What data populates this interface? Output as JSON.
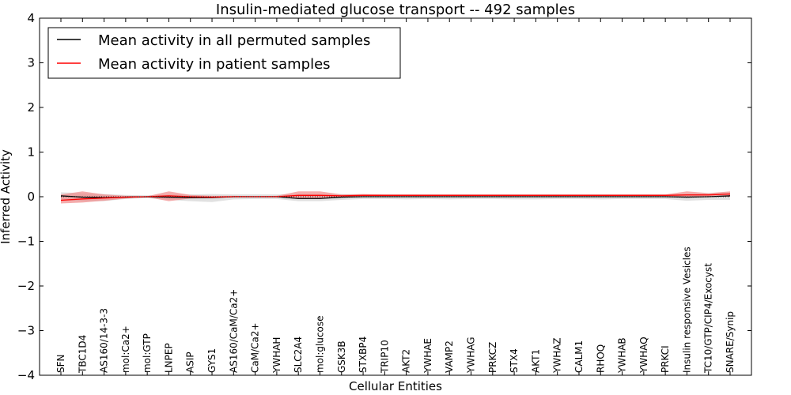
{
  "chart_data": {
    "type": "line",
    "title": "Insulin-mediated glucose transport -- 492 samples",
    "xlabel": "Cellular Entities",
    "ylabel": "Inferred Activity",
    "ylim": [
      -4,
      4
    ],
    "yticks": [
      -4,
      -3,
      -2,
      -1,
      0,
      1,
      2,
      3,
      4
    ],
    "ytick_labels": [
      "−4",
      "−3",
      "−2",
      "−1",
      "0",
      "1",
      "2",
      "3",
      "4"
    ],
    "legend_position": "top-left",
    "categories": [
      "SFN",
      "TBC1D4",
      "AS160/14-3-3",
      "mol:Ca2+",
      "mol:GTP",
      "LNPEP",
      "ASIP",
      "GYS1",
      "AS160/CaM/Ca2+",
      "CaM/Ca2+",
      "YWHAH",
      "SLC2A4",
      "mol:glucose",
      "GSK3B",
      "STXBP4",
      "TRIP10",
      "AKT2",
      "YWHAE",
      "VAMP2",
      "YWHAG",
      "PRKCZ",
      "STX4",
      "AKT1",
      "YWHAZ",
      "CALM1",
      "RHOQ",
      "YWHAB",
      "YWHAQ",
      "PRKCI",
      "Insulin responsive Vesicles",
      "TC10/GTP/CIP4/Exocyst",
      "SNARE/Synip"
    ],
    "series": [
      {
        "name": "Mean activity in all permuted samples",
        "color": "#000000",
        "values": [
          0.02,
          -0.01,
          -0.02,
          -0.01,
          0.0,
          -0.01,
          -0.02,
          -0.02,
          0.0,
          0.0,
          0.0,
          -0.04,
          -0.04,
          -0.01,
          0.0,
          0.0,
          0.0,
          0.0,
          0.0,
          0.0,
          0.0,
          0.0,
          0.0,
          0.0,
          0.0,
          0.0,
          0.0,
          0.0,
          0.0,
          -0.01,
          0.0,
          0.02
        ],
        "band_low": [
          -0.08,
          -0.1,
          -0.1,
          -0.05,
          -0.03,
          -0.07,
          -0.1,
          -0.12,
          -0.06,
          -0.05,
          -0.05,
          -0.1,
          -0.1,
          -0.07,
          -0.05,
          -0.05,
          -0.06,
          -0.05,
          -0.06,
          -0.05,
          -0.05,
          -0.06,
          -0.06,
          -0.05,
          -0.05,
          -0.06,
          -0.05,
          -0.05,
          -0.05,
          -0.09,
          -0.07,
          -0.07
        ],
        "band_high": [
          0.1,
          0.08,
          0.06,
          0.04,
          0.03,
          0.05,
          0.05,
          0.06,
          0.05,
          0.05,
          0.05,
          0.06,
          0.06,
          0.06,
          0.05,
          0.05,
          0.05,
          0.05,
          0.05,
          0.05,
          0.05,
          0.05,
          0.05,
          0.05,
          0.05,
          0.05,
          0.05,
          0.05,
          0.05,
          0.06,
          0.08,
          0.1
        ],
        "band_color": "#c8c8c8"
      },
      {
        "name": "Mean activity in patient samples",
        "color": "#ff0000",
        "values": [
          -0.08,
          -0.05,
          -0.03,
          -0.01,
          0.0,
          0.02,
          0.0,
          -0.01,
          0.0,
          0.0,
          0.0,
          0.03,
          0.03,
          0.02,
          0.03,
          0.03,
          0.03,
          0.03,
          0.03,
          0.03,
          0.03,
          0.03,
          0.03,
          0.03,
          0.03,
          0.03,
          0.03,
          0.03,
          0.03,
          0.04,
          0.04,
          0.06
        ],
        "band_low": [
          -0.15,
          -0.13,
          -0.09,
          -0.04,
          -0.01,
          -0.1,
          -0.04,
          -0.03,
          -0.01,
          0.0,
          -0.01,
          -0.05,
          -0.04,
          -0.01,
          0.01,
          0.01,
          0.01,
          0.01,
          0.01,
          0.01,
          0.01,
          0.01,
          0.01,
          0.01,
          0.01,
          0.01,
          0.01,
          0.01,
          0.01,
          -0.02,
          0.0,
          0.0
        ],
        "band_high": [
          0.05,
          0.12,
          0.05,
          0.02,
          0.01,
          0.12,
          0.04,
          0.02,
          0.02,
          0.01,
          0.02,
          0.12,
          0.12,
          0.05,
          0.06,
          0.05,
          0.05,
          0.05,
          0.05,
          0.05,
          0.05,
          0.05,
          0.05,
          0.05,
          0.05,
          0.05,
          0.05,
          0.05,
          0.05,
          0.12,
          0.08,
          0.12
        ],
        "band_color": "#f08080"
      }
    ],
    "grid": false
  }
}
